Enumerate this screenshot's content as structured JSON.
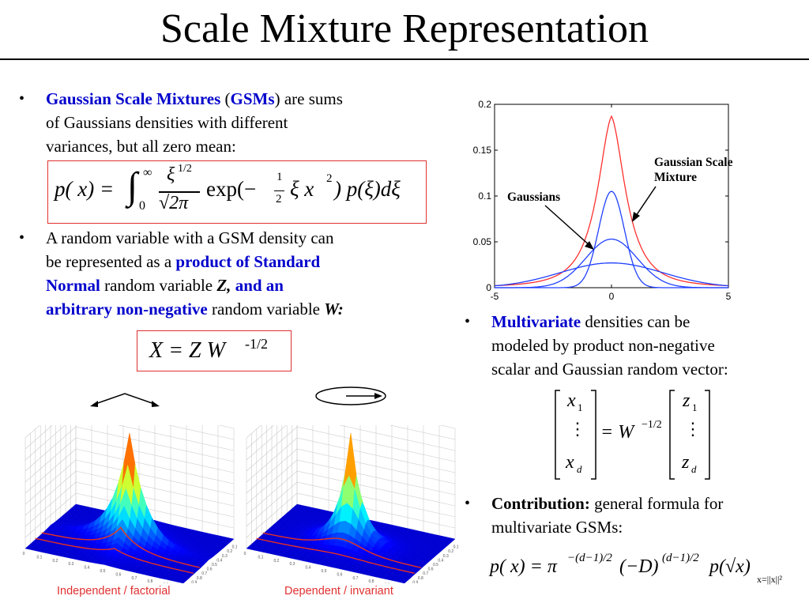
{
  "slide": {
    "title": "Scale Mixture Representation"
  },
  "left": {
    "bullet1": {
      "part1": "Gaussian Scale Mixtures",
      "part2": " (",
      "part3": "GSMs",
      "part4": ")",
      "part5": " are sums",
      "line2": "of Gaussians densities with different",
      "line3": "variances, but all zero mean:"
    },
    "equation1": {
      "lhs": "p( x) =",
      "int_upper": "∞",
      "int_lower": "0",
      "frac_num": "ξ",
      "frac_num_sup": "1/2",
      "frac_den": "√2π",
      "exp": "exp(−",
      "half_num": "1",
      "half_den": "2",
      "rest": "ξ x",
      "rest_sup": "2",
      "tail": ") p(ξ)dξ"
    },
    "bullet2": {
      "line1": "A random variable with a GSM density can",
      "line2a": "be represented as a ",
      "line2b": "product of Standard",
      "line3a": "Normal",
      "line3b": " random variable ",
      "line3c": "Z,",
      "line3d": " and an",
      "line4a": "arbitrary non-negative",
      "line4b": " random variable ",
      "line4c": "W:"
    },
    "equation2": {
      "text": "X = Z W",
      "sup": "-1/2"
    },
    "captions": {
      "left": "Independent / factorial",
      "right": "Dependent / invariant"
    }
  },
  "right": {
    "bullet3": {
      "part1": "Multivariate",
      "part2": " densities can be",
      "line2": "modeled by product non-negative",
      "line3": "scalar and Gaussian random vector:"
    },
    "matrix_eq": {
      "x1": "x",
      "x1_sub": "1",
      "xd": "x",
      "xd_sub": "d",
      "vdots": "⋮",
      "equals_w": "= W",
      "w_sup": "−1/2",
      "z1": "z",
      "z1_sub": "1",
      "zd": "z",
      "zd_sub": "d"
    },
    "bullet4": {
      "part1": "Contribution:",
      "part2": " general formula for",
      "line2": "multivariate GSMs:"
    },
    "equation3": {
      "text1": "p( x) = π",
      "sup1": "−(d−1)/2",
      "text2": "(−D)",
      "sup2": "(d−1)/2",
      "text3": "p(√x)",
      "sub": "x=||x||²"
    }
  },
  "plot_labels": {
    "gaussians": "Gaussians",
    "gsm_line1": "Gaussian Scale",
    "gsm_line2": "Mixture"
  },
  "chart_data": {
    "type": "line",
    "title": "",
    "xlabel": "",
    "ylabel": "",
    "xlim": [
      -5,
      5
    ],
    "ylim": [
      0,
      0.2
    ],
    "x_ticks": [
      "-5",
      "0",
      "5"
    ],
    "y_ticks": [
      "0",
      "0.05",
      "0.1",
      "0.15",
      "0.2"
    ],
    "series": [
      {
        "name": "Gaussian Scale Mixture",
        "color": "#ff3030",
        "peak": 0.187,
        "kind": "mixture"
      },
      {
        "color": "#2040ff",
        "peak": 0.105,
        "sigma": 0.55,
        "kind": "gaussian"
      },
      {
        "color": "#2040ff",
        "peak": 0.053,
        "sigma": 1.1,
        "kind": "gaussian"
      },
      {
        "color": "#2040ff",
        "peak": 0.027,
        "sigma": 2.2,
        "kind": "gaussian"
      }
    ],
    "grid": false
  },
  "surface_tick_labels": [
    "1",
    "0.9",
    "0.8",
    "0.7",
    "0.6",
    "0.5",
    "0.4",
    "0.3",
    "0.2",
    "0.1",
    "0"
  ]
}
